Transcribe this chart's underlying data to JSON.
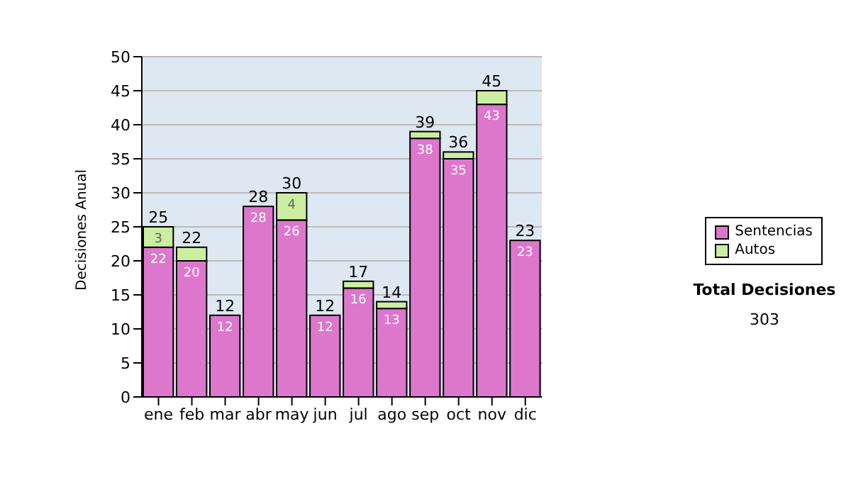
{
  "chart_data": {
    "type": "bar",
    "stacked": true,
    "ylabel": "Decisiones Anual",
    "categories": [
      "ene",
      "feb",
      "mar",
      "abr",
      "may",
      "jun",
      "jul",
      "ago",
      "sep",
      "oct",
      "nov",
      "dic"
    ],
    "series": [
      {
        "name": "Sentencias",
        "color": "#dd77cc",
        "values": [
          22,
          20,
          12,
          28,
          26,
          12,
          16,
          13,
          38,
          35,
          43,
          23
        ],
        "value_labels": [
          "22",
          "20",
          "12",
          "28",
          "26",
          "12",
          "16",
          "13",
          "38",
          "35",
          "43",
          "23"
        ]
      },
      {
        "name": "Autos",
        "color": "#cceea0",
        "values": [
          3,
          2,
          0,
          0,
          4,
          0,
          1,
          1,
          1,
          1,
          2,
          0
        ],
        "value_labels": [
          "3",
          null,
          null,
          null,
          "4",
          null,
          null,
          null,
          null,
          null,
          null,
          null
        ]
      }
    ],
    "totals": [
      "25",
      "22",
      "12",
      "28",
      "30",
      "12",
      "17",
      "14",
      "39",
      "36",
      "45",
      "23"
    ],
    "ylim": [
      0,
      50
    ],
    "yticks": [
      0,
      5,
      10,
      15,
      20,
      25,
      30,
      35,
      40,
      45,
      50
    ],
    "grid": "y",
    "legend": "right",
    "annotations": [
      "Total Decisiones",
      "303"
    ]
  }
}
